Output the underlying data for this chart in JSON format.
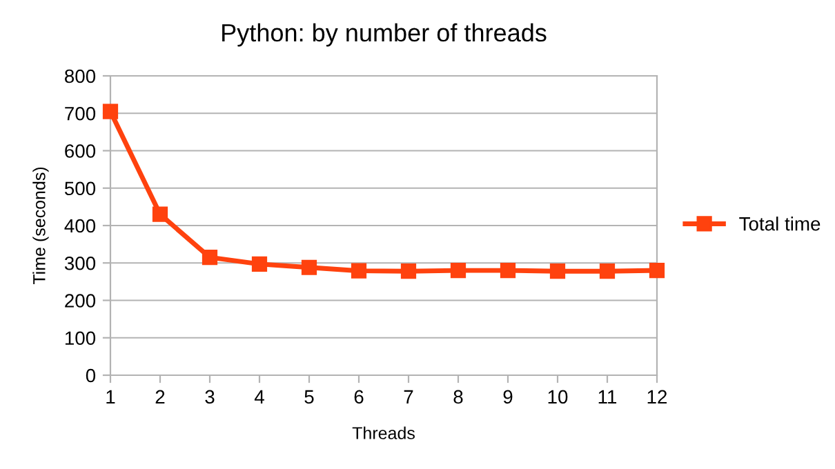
{
  "chart_data": {
    "type": "line",
    "title": "Python: by number of threads",
    "xlabel": "Threads",
    "ylabel": "Time (seconds)",
    "x": [
      1,
      2,
      3,
      4,
      5,
      6,
      7,
      8,
      9,
      10,
      11,
      12
    ],
    "series": [
      {
        "name": "Total time",
        "color": "#ff420e",
        "values": [
          705,
          430,
          315,
          297,
          288,
          279,
          278,
          280,
          280,
          278,
          278,
          280
        ]
      }
    ],
    "xlim": [
      1,
      12
    ],
    "xticks": [
      1,
      2,
      3,
      4,
      5,
      6,
      7,
      8,
      9,
      10,
      11,
      12
    ],
    "ylim": [
      0,
      800
    ],
    "yticks": [
      0,
      100,
      200,
      300,
      400,
      500,
      600,
      700,
      800
    ],
    "grid": "y",
    "legend": "right",
    "marker": "square",
    "line_style": "solid"
  }
}
